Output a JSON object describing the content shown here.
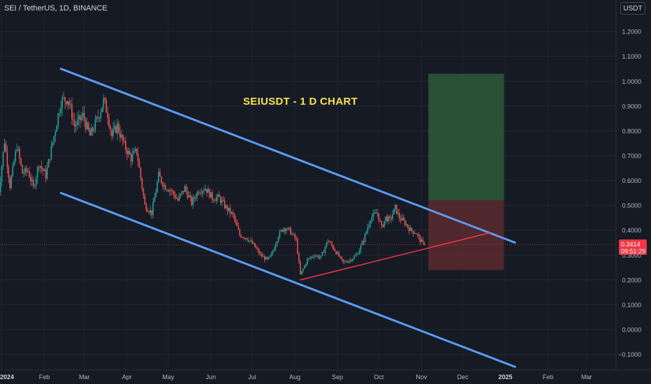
{
  "header": {
    "title": "SEI / TetherUS, 1D, BINANCE",
    "currency": "USDT"
  },
  "price_tag": {
    "price": "0.3414",
    "countdown": "09:51:29"
  },
  "annotation": "SEIUSDT - 1 D CHART",
  "colors": {
    "background": "#161a25",
    "up": "#26a69a",
    "down": "#ef5350",
    "channel": "#5b9cf6",
    "trendline": "#f23645",
    "target_zone": "#2e5b39",
    "stop_zone": "#5c2a30"
  },
  "chart_data": {
    "type": "candlestick",
    "y_axis": {
      "ticks": [
        "1.2000",
        "1.1000",
        "1.0000",
        "0.9000",
        "0.8000",
        "0.7000",
        "0.6000",
        "0.5000",
        "0.4000",
        "0.3000",
        "0.2000",
        "0.1000",
        "0.0000",
        "−0.1000"
      ],
      "ylim": [
        -0.15,
        1.23
      ]
    },
    "x_axis": {
      "ticks": [
        "2024",
        "Feb",
        "Mar",
        "Apr",
        "May",
        "Jun",
        "Jul",
        "Aug",
        "Sep",
        "Oct",
        "Nov",
        "Dec",
        "2025",
        "Feb",
        "Mar"
      ],
      "tick_dates": [
        "2024-01-01",
        "2024-02-01",
        "2024-03-01",
        "2024-04-01",
        "2024-05-01",
        "2024-06-01",
        "2024-07-01",
        "2024-08-01",
        "2024-09-01",
        "2024-10-01",
        "2024-11-01",
        "2024-12-01",
        "2025-01-01",
        "2025-02-01",
        "2025-03-01"
      ],
      "bold_ticks": [
        "2024",
        "2025"
      ]
    },
    "price_path": [
      [
        "2023-12-28",
        0.46
      ],
      [
        "2024-01-03",
        0.76
      ],
      [
        "2024-01-07",
        0.58
      ],
      [
        "2024-01-12",
        0.74
      ],
      [
        "2024-01-16",
        0.63
      ],
      [
        "2024-01-20",
        0.64
      ],
      [
        "2024-01-24",
        0.57
      ],
      [
        "2024-01-28",
        0.67
      ],
      [
        "2024-02-02",
        0.62
      ],
      [
        "2024-02-08",
        0.78
      ],
      [
        "2024-02-13",
        0.92
      ],
      [
        "2024-02-18",
        0.93
      ],
      [
        "2024-02-23",
        0.82
      ],
      [
        "2024-02-29",
        0.86
      ],
      [
        "2024-03-05",
        0.78
      ],
      [
        "2024-03-10",
        0.84
      ],
      [
        "2024-03-15",
        0.92
      ],
      [
        "2024-03-18",
        0.87
      ],
      [
        "2024-03-21",
        0.78
      ],
      [
        "2024-03-25",
        0.82
      ],
      [
        "2024-03-30",
        0.74
      ],
      [
        "2024-04-04",
        0.69
      ],
      [
        "2024-04-08",
        0.72
      ],
      [
        "2024-04-14",
        0.5
      ],
      [
        "2024-04-19",
        0.47
      ],
      [
        "2024-04-24",
        0.62
      ],
      [
        "2024-04-28",
        0.58
      ],
      [
        "2024-05-03",
        0.56
      ],
      [
        "2024-05-08",
        0.52
      ],
      [
        "2024-05-13",
        0.57
      ],
      [
        "2024-05-18",
        0.51
      ],
      [
        "2024-05-23",
        0.56
      ],
      [
        "2024-05-28",
        0.57
      ],
      [
        "2024-06-02",
        0.53
      ],
      [
        "2024-06-07",
        0.53
      ],
      [
        "2024-06-12",
        0.49
      ],
      [
        "2024-06-17",
        0.46
      ],
      [
        "2024-06-22",
        0.38
      ],
      [
        "2024-06-27",
        0.37
      ],
      [
        "2024-07-02",
        0.34
      ],
      [
        "2024-07-07",
        0.3
      ],
      [
        "2024-07-12",
        0.28
      ],
      [
        "2024-07-15",
        0.3
      ],
      [
        "2024-07-20",
        0.38
      ],
      [
        "2024-07-24",
        0.41
      ],
      [
        "2024-07-28",
        0.4
      ],
      [
        "2024-08-02",
        0.36
      ],
      [
        "2024-08-05",
        0.22
      ],
      [
        "2024-08-10",
        0.28
      ],
      [
        "2024-08-15",
        0.3
      ],
      [
        "2024-08-20",
        0.29
      ],
      [
        "2024-08-25",
        0.36
      ],
      [
        "2024-08-30",
        0.32
      ],
      [
        "2024-09-05",
        0.27
      ],
      [
        "2024-09-10",
        0.28
      ],
      [
        "2024-09-15",
        0.3
      ],
      [
        "2024-09-20",
        0.36
      ],
      [
        "2024-09-25",
        0.45
      ],
      [
        "2024-09-30",
        0.47
      ],
      [
        "2024-10-03",
        0.41
      ],
      [
        "2024-10-06",
        0.45
      ],
      [
        "2024-10-09",
        0.44
      ],
      [
        "2024-10-13",
        0.49
      ],
      [
        "2024-10-16",
        0.45
      ],
      [
        "2024-10-20",
        0.43
      ],
      [
        "2024-10-24",
        0.4
      ],
      [
        "2024-10-28",
        0.39
      ],
      [
        "2024-10-31",
        0.36
      ],
      [
        "2024-11-03",
        0.34
      ]
    ],
    "channel_upper": [
      [
        "2024-02-13",
        1.05
      ],
      [
        "2025-01-08",
        0.35
      ]
    ],
    "channel_lower": [
      [
        "2024-02-13",
        0.55
      ],
      [
        "2025-01-08",
        -0.15
      ]
    ],
    "rising_trendline": [
      [
        "2024-08-05",
        0.2
      ],
      [
        "2024-12-21",
        0.39
      ]
    ],
    "position": {
      "start": "2024-11-06",
      "end": "2024-12-31",
      "entry": 0.52,
      "target": 1.03,
      "stop": 0.24
    },
    "last_price": 0.3414
  }
}
